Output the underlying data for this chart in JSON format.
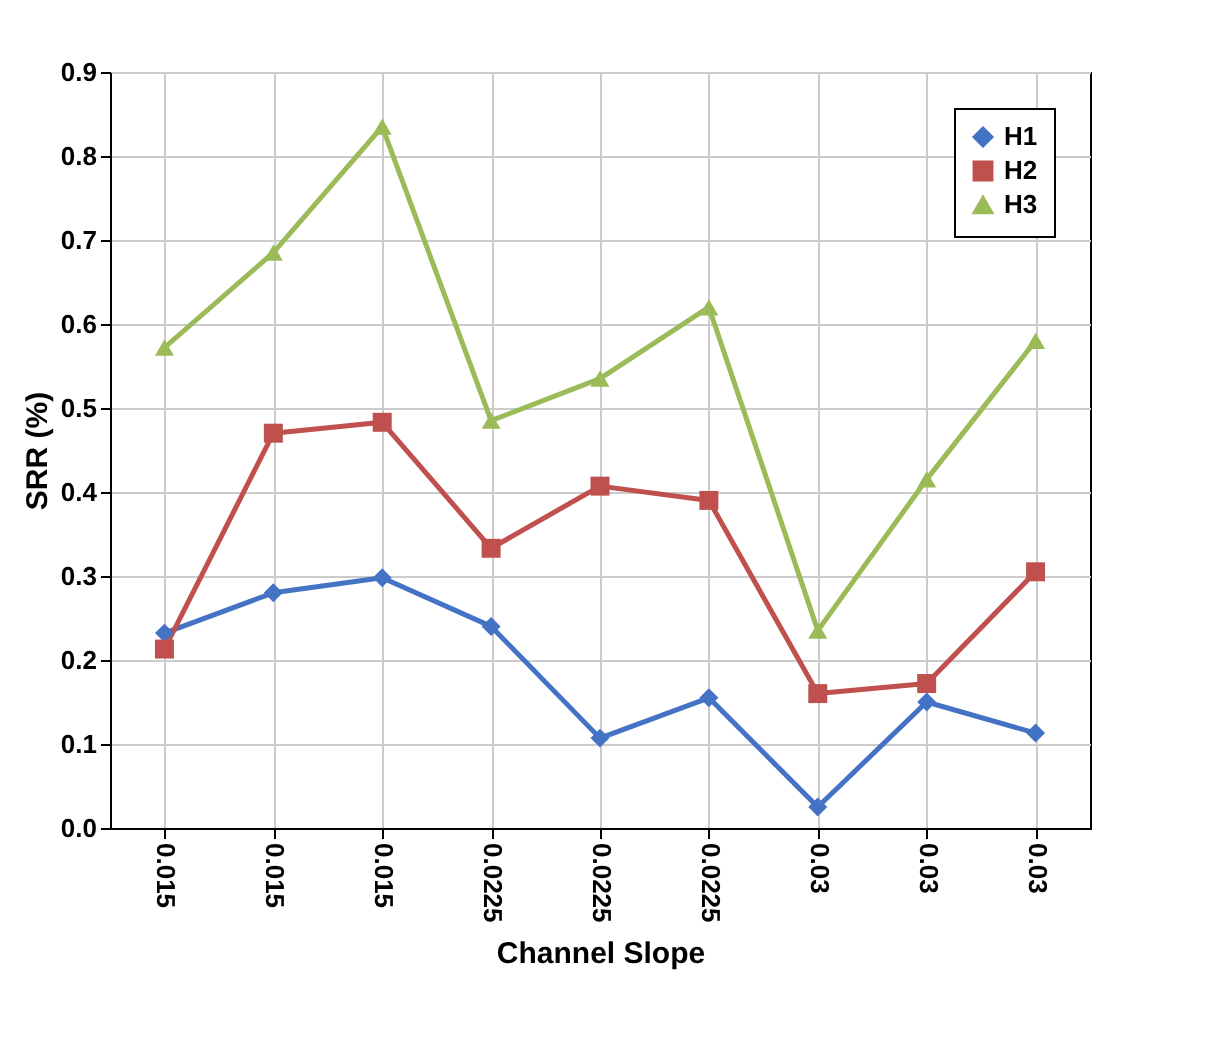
{
  "chart_data": {
    "type": "line",
    "xlabel": "Channel Slope",
    "ylabel": "SRR (%)",
    "categories": [
      "0.015",
      "0.015",
      "0.015",
      "0.0225",
      "0.0225",
      "0.0225",
      "0.03",
      "0.03",
      "0.03"
    ],
    "series": [
      {
        "name": "H1",
        "color": "#4472c4",
        "marker": "diamond",
        "values": [
          0.232,
          0.28,
          0.298,
          0.24,
          0.107,
          0.155,
          0.025,
          0.15,
          0.113
        ]
      },
      {
        "name": "H2",
        "color": "#c0504d",
        "marker": "square",
        "values": [
          0.213,
          0.47,
          0.483,
          0.333,
          0.407,
          0.39,
          0.16,
          0.172,
          0.305
        ]
      },
      {
        "name": "H3",
        "color": "#9bbb59",
        "marker": "triangle",
        "values": [
          0.572,
          0.685,
          0.835,
          0.485,
          0.535,
          0.62,
          0.235,
          0.415,
          0.58
        ]
      }
    ],
    "ylim": [
      0,
      0.9
    ],
    "yticks": [
      {
        "value": 0,
        "label": "0.0"
      },
      0.1,
      0.2,
      0.3,
      0.4,
      0.5,
      0.6,
      0.7,
      0.8,
      0.9
    ],
    "grid": true,
    "legend": "top right",
    "line_style": "solid"
  }
}
